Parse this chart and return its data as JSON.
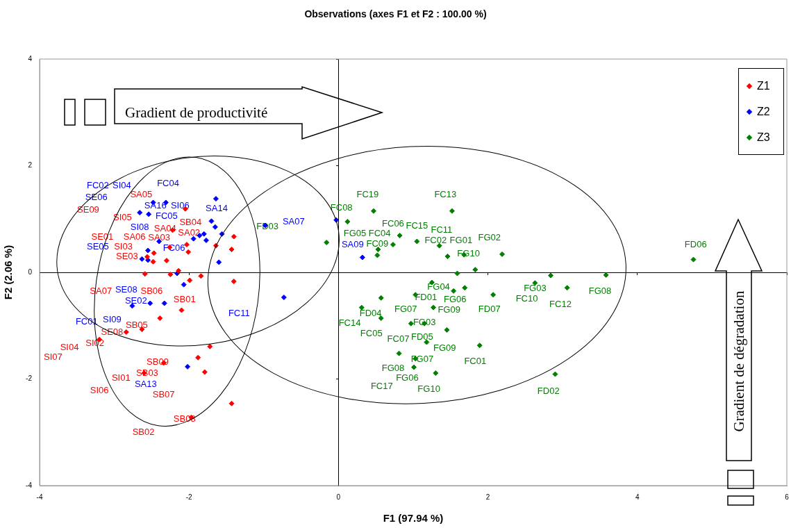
{
  "chart_data": {
    "type": "scatter",
    "title": "Observations (axes F1 et F2 : 100.00 %)",
    "xlabel": "F1 (97.94 %)",
    "ylabel": "F2 (2.06 %)",
    "xlim": [
      -4,
      6
    ],
    "xticks": [
      -4,
      -2,
      0,
      2,
      4,
      6
    ],
    "ylim": [
      -4,
      4
    ],
    "yticks": [
      -4,
      -2,
      0,
      2,
      4
    ],
    "legend": "top right",
    "marker": "diamond",
    "series": [
      {
        "name": "Z1",
        "color": "#ff0000",
        "x": [
          -2.05,
          -2.22,
          -2.03,
          -2.01,
          -2.26,
          -2.47,
          -2.48,
          -2.3,
          -2.56,
          -2.59,
          -2.25,
          -2.14,
          -1.99,
          -1.84,
          -1.4,
          -1.4,
          -1.64,
          -1.43,
          -2.1,
          -2.39,
          -2.63,
          -2.84,
          -3.2,
          -1.72,
          -1.88,
          -1.79,
          -2.34,
          -2.6,
          -1.43,
          -1.97
        ],
        "values": [
          1.19,
          0.79,
          0.52,
          0.38,
          0.47,
          0.36,
          0.2,
          0.22,
          0.29,
          -0.03,
          -0.04,
          0.03,
          -0.15,
          -0.07,
          -0.17,
          0.67,
          0.5,
          0.43,
          -0.71,
          -0.86,
          -1.07,
          -1.12,
          -1.26,
          -1.39,
          -1.6,
          -1.87,
          -1.7,
          -1.89,
          -2.46,
          -2.72
        ]
      },
      {
        "name": "Z2",
        "color": "#0000ff",
        "x": [
          -2.48,
          -2.31,
          -2.66,
          -2.54,
          -1.64,
          -1.7,
          -1.65,
          -1.56,
          -1.86,
          -1.8,
          -1.77,
          -1.94,
          -2.4,
          -2.55,
          -2.63,
          -2.55,
          -2.16,
          -2.07,
          -1.6,
          -2.76,
          -2.52,
          -2.33,
          -2.02,
          -0.98,
          -0.73,
          -0.03,
          0.32
        ],
        "values": [
          1.31,
          1.31,
          1.12,
          1.09,
          1.38,
          0.96,
          0.85,
          0.72,
          0.69,
          0.72,
          0.6,
          0.63,
          0.58,
          0.41,
          0.25,
          0.23,
          -0.02,
          -0.23,
          0.19,
          -0.63,
          -0.58,
          -0.58,
          -1.77,
          0.88,
          -0.47,
          0.98,
          0.28
        ]
      },
      {
        "name": "Z3",
        "color": "#008000",
        "x": [
          -0.16,
          0.12,
          0.47,
          1.52,
          0.82,
          0.73,
          0.53,
          0.52,
          1.05,
          1.35,
          1.46,
          1.68,
          2.19,
          1.83,
          1.59,
          1.25,
          1.69,
          1.54,
          2.07,
          1.03,
          0.57,
          0.31,
          0.57,
          1.27,
          0.97,
          1.15,
          1.45,
          1.18,
          1.89,
          0.81,
          1.03,
          1.01,
          1.3,
          2.84,
          2.63,
          3.06,
          3.58,
          4.75,
          2.9
        ],
        "values": [
          0.56,
          0.95,
          1.15,
          1.15,
          0.69,
          0.52,
          0.43,
          0.32,
          0.58,
          0.5,
          0.3,
          0.33,
          0.34,
          0.05,
          -0.02,
          -0.19,
          -0.29,
          -0.35,
          -0.42,
          -0.42,
          -0.48,
          -0.66,
          -0.86,
          -0.66,
          -0.96,
          -0.96,
          -1.08,
          -1.31,
          -1.37,
          -1.52,
          -1.62,
          -1.78,
          -1.89,
          -0.06,
          -0.2,
          -0.29,
          -0.05,
          0.24,
          -1.91
        ]
      }
    ],
    "annotations": [
      "Gradient de productivité",
      "Gradient de dégradation",
      "FC02",
      "SI04",
      "SA05",
      "SE06",
      "SE09",
      "FC04",
      "SA16",
      "SI06",
      "FC05",
      "SA14",
      "SB04",
      "SI05",
      "SI08",
      "SA02",
      "SA04",
      "SA06",
      "SA03",
      "SE01",
      "FC06",
      "SI03",
      "SE05",
      "SE03",
      "SA07",
      "SE08",
      "SB06",
      "SE02",
      "SB01",
      "FC11",
      "FC01",
      "SI09",
      "SB05",
      "SE08",
      "SI02",
      "SI04",
      "SI07",
      "SB09",
      "SB03",
      "SI01",
      "SA13",
      "SB07",
      "SI06",
      "SB08",
      "SB02",
      "SA07",
      "FD03",
      "SA09",
      "FC08",
      "FC19",
      "FC13",
      "FC06",
      "FC04",
      "FC15",
      "FC11",
      "FG05",
      "FC09",
      "FC02",
      "FG01",
      "FG02",
      "FG10",
      "FG04",
      "FD01",
      "FG06",
      "FG09",
      "FD07",
      "FG07",
      "FD04",
      "FC14",
      "FG03",
      "FC05",
      "FC07",
      "FD05",
      "FG09",
      "FC01",
      "FG07",
      "FG08",
      "FG06",
      "FC17",
      "FG10",
      "FD02",
      "FG03",
      "FC10",
      "FC12",
      "FG08",
      "FD06"
    ]
  }
}
